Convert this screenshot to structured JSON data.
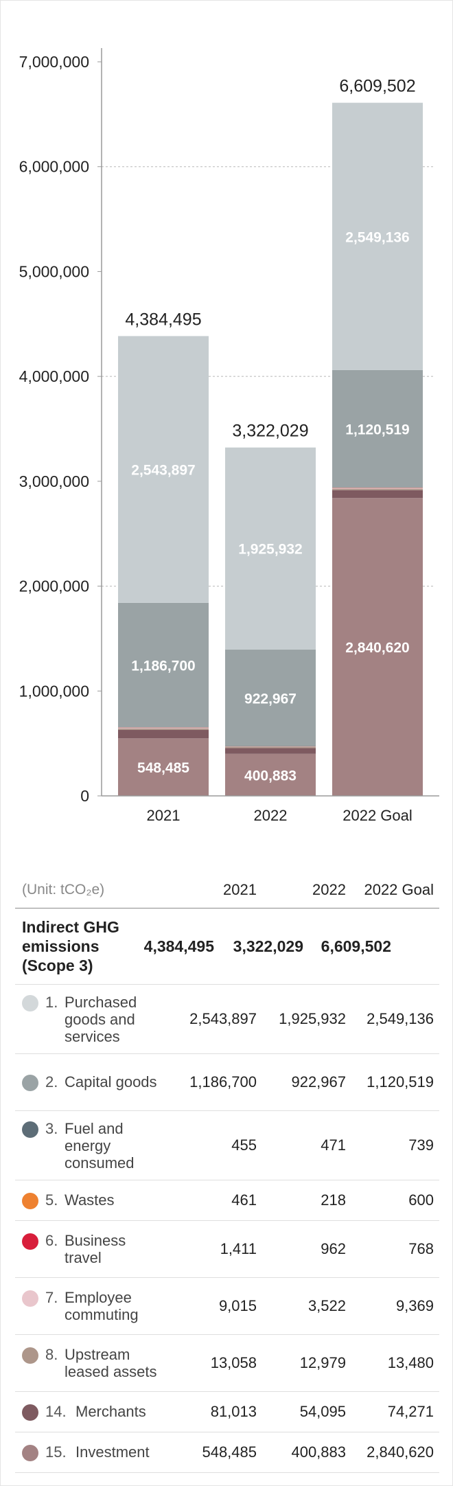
{
  "chart_data": {
    "type": "bar",
    "stacked": true,
    "categories": [
      "2021",
      "2022",
      "2022 Goal"
    ],
    "totals": [
      "4,384,495",
      "3,322,029",
      "6,609,502"
    ],
    "total_values": [
      4384495,
      3322029,
      6609502
    ],
    "ylim": [
      0,
      7000000
    ],
    "y_ticks": [
      {
        "value": 0,
        "label": "0"
      },
      {
        "value": 1000000,
        "label": "1,000,000"
      },
      {
        "value": 2000000,
        "label": "2,000,000"
      },
      {
        "value": 3000000,
        "label": "3,000,000"
      },
      {
        "value": 4000000,
        "label": "4,000,000"
      },
      {
        "value": 5000000,
        "label": "5,000,000"
      },
      {
        "value": 6000000,
        "label": "6,000,000"
      },
      {
        "value": 7000000,
        "label": "7,000,000"
      }
    ],
    "series": [
      {
        "name": "15. Investment",
        "color": "#a38283",
        "values": [
          548485,
          400883,
          2840620
        ],
        "labels": [
          "548,485",
          "400,883",
          "2,840,620"
        ]
      },
      {
        "name": "14. Merchants",
        "color": "#7e5a60",
        "values": [
          81013,
          54095,
          74271
        ]
      },
      {
        "name": "8. Upstream leased assets",
        "color": "#ad968a",
        "values": [
          13058,
          12979,
          13480
        ]
      },
      {
        "name": "7. Employee commuting",
        "color": "#e9c6cc",
        "values": [
          9015,
          3522,
          9369
        ]
      },
      {
        "name": "6. Business travel",
        "color": "#d81e3b",
        "values": [
          1411,
          962,
          768
        ]
      },
      {
        "name": "5. Wastes",
        "color": "#ee8130",
        "values": [
          461,
          218,
          600
        ]
      },
      {
        "name": "3. Fuel and energy consumed",
        "color": "#5d6d77",
        "values": [
          455,
          471,
          739
        ]
      },
      {
        "name": "2. Capital goods",
        "color": "#9aa3a5",
        "values": [
          1186700,
          922967,
          1120519
        ],
        "labels": [
          "1,186,700",
          "922,967",
          "1,120,519"
        ]
      },
      {
        "name": "1. Purchased goods and services",
        "color": "#c6cdd0",
        "values": [
          2543897,
          1925932,
          2549136
        ],
        "labels": [
          "2,543,897",
          "1,925,932",
          "2,549,136"
        ]
      }
    ]
  },
  "table": {
    "unit": "(Unit: tCO₂e)",
    "columns": [
      "2021",
      "2022",
      "2022 Goal"
    ],
    "total": {
      "label": "Indirect GHG emissions (Scope 3)",
      "values": [
        "4,384,495",
        "3,322,029",
        "6,609,502"
      ]
    },
    "rows": [
      {
        "num": "1.",
        "label": "Purchased goods and services",
        "color": "#d3d8da",
        "values": [
          "2,543,897",
          "1,925,932",
          "2,549,136"
        ]
      },
      {
        "num": "2.",
        "label": "Capital goods",
        "color": "#9aa3a5",
        "values": [
          "1,186,700",
          "922,967",
          "1,120,519"
        ]
      },
      {
        "num": "3.",
        "label": "Fuel and energy consumed",
        "color": "#5d6d77",
        "values": [
          "455",
          "471",
          "739"
        ]
      },
      {
        "num": "5.",
        "label": "Wastes",
        "color": "#ee8130",
        "values": [
          "461",
          "218",
          "600"
        ]
      },
      {
        "num": "6.",
        "label": "Business travel",
        "color": "#d81e3b",
        "values": [
          "1,411",
          "962",
          "768"
        ]
      },
      {
        "num": "7.",
        "label": "Employee commuting",
        "color": "#e9c6cc",
        "values": [
          "9,015",
          "3,522",
          "9,369"
        ]
      },
      {
        "num": "8.",
        "label": "Upstream leased assets",
        "color": "#ad968a",
        "values": [
          "13,058",
          "12,979",
          "13,480"
        ]
      },
      {
        "num": "14.",
        "label": "Merchants",
        "color": "#7e5a60",
        "values": [
          "81,013",
          "54,095",
          "74,271"
        ]
      },
      {
        "num": "15.",
        "label": "Investment",
        "color": "#a38283",
        "values": [
          "548,485",
          "400,883",
          "2,840,620"
        ]
      }
    ]
  }
}
